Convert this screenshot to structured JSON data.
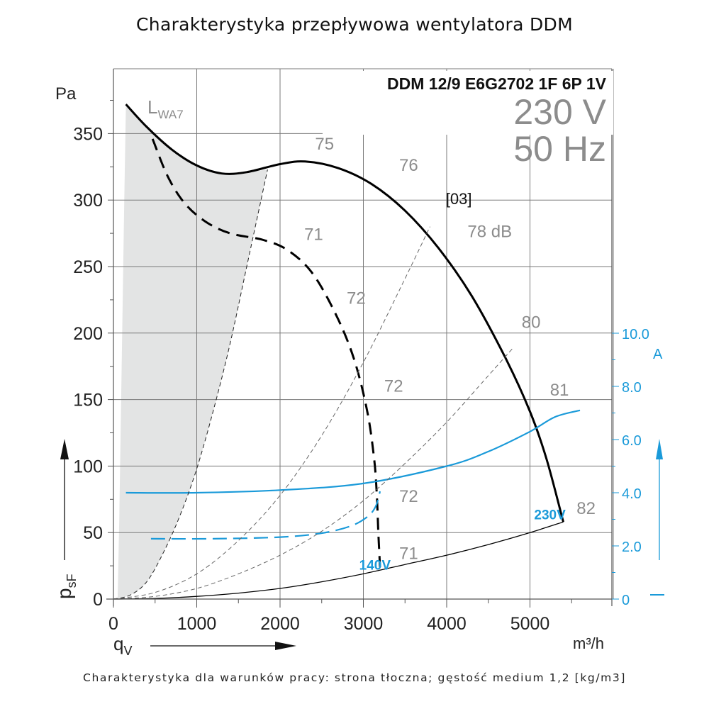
{
  "header": {
    "title": "Charakterystyka przepływowa wentylatora DDM"
  },
  "footer": {
    "caption": "Charakterystyka dla warunków pracy: strona tłoczna; gęstość medium 1,2 [kg/m3]"
  },
  "colors": {
    "curve": "#000000",
    "current": "#1a9ad9",
    "label_gray": "#8c8c8c",
    "shade": "#e3e4e4",
    "grid": "#7a7a7a"
  },
  "chart_data": {
    "type": "line",
    "model": "DDM 12/9 E6G2702 1F 6P 1V",
    "voltage_label": "230 V",
    "frequency_label": "50 Hz",
    "curve_code": "[03]",
    "sound_label": "LWA7",
    "sound_label_main": "L",
    "sound_label_sub": "WA7",
    "xlabel": "qV",
    "xlabel_main": "q",
    "xlabel_sub": "V",
    "xunit": "m³/h",
    "ylabel": "psF",
    "ylabel_main": "p",
    "ylabel_sub": "sF",
    "yunit": "Pa",
    "y2unit": "A",
    "xlim": [
      0,
      6000
    ],
    "ylim": [
      0,
      400
    ],
    "y2lim": [
      0,
      10
    ],
    "x_ticks": [
      0,
      1000,
      2000,
      3000,
      4000,
      5000
    ],
    "x_tick_labels": [
      "0",
      "1000",
      "2000",
      "3000",
      "4000",
      "5000"
    ],
    "y_ticks": [
      0,
      50,
      100,
      150,
      200,
      250,
      300,
      350
    ],
    "y_tick_labels": [
      "0",
      "50",
      "100",
      "150",
      "200",
      "250",
      "300",
      "350"
    ],
    "y2_ticks": [
      0,
      2,
      4,
      6,
      8,
      10
    ],
    "y2_tick_labels": [
      "0",
      "2.0",
      "4.0",
      "6.0",
      "8.0",
      "10.0"
    ],
    "grid": true,
    "series": [
      {
        "name": "230V pressure",
        "kind": "pressure",
        "style": "solid",
        "axis": "left",
        "x": [
          150,
          400,
          700,
          1000,
          1300,
          1600,
          2000,
          2300,
          2700,
          3100,
          3500,
          3900,
          4300,
          4700,
          5000,
          5200,
          5400
        ],
        "y": [
          372,
          355,
          338,
          326,
          320,
          321,
          327,
          329,
          324,
          312,
          292,
          264,
          228,
          182,
          141,
          105,
          58
        ]
      },
      {
        "name": "140V pressure",
        "kind": "pressure",
        "style": "dashed",
        "axis": "left",
        "x": [
          470,
          650,
          850,
          1100,
          1400,
          1800,
          2100,
          2400,
          2700,
          2900,
          3050,
          3130,
          3160,
          3180,
          3200
        ],
        "y": [
          346,
          318,
          298,
          284,
          275,
          270,
          262,
          244,
          210,
          178,
          140,
          105,
          80,
          50,
          24
        ]
      },
      {
        "name": "230V current",
        "kind": "current",
        "style": "solid",
        "axis": "right",
        "x": [
          150,
          1000,
          2000,
          3000,
          4000,
          4500,
          5000,
          5300,
          5600
        ],
        "y": [
          4.0,
          4.0,
          4.1,
          4.35,
          5.0,
          5.55,
          6.3,
          6.85,
          7.1
        ]
      },
      {
        "name": "140V current",
        "kind": "current",
        "style": "dashed",
        "axis": "right",
        "x": [
          450,
          1200,
          2000,
          2500,
          2850,
          3050,
          3150,
          3200
        ],
        "y": [
          2.27,
          2.27,
          2.33,
          2.48,
          2.75,
          3.1,
          3.5,
          4.05
        ]
      },
      {
        "name": "Shaded boundary",
        "kind": "boundary",
        "style": "thin-dashed",
        "axis": "left",
        "x": [
          0,
          200,
          400,
          600,
          800,
          1000,
          1200,
          1400,
          1600,
          1850
        ],
        "y": [
          0,
          3,
          13,
          35,
          63,
          98,
          142,
          192,
          250,
          323
        ]
      },
      {
        "name": "System line A",
        "kind": "system",
        "style": "thin-dashed",
        "axis": "left",
        "x": [
          0,
          500,
          1000,
          1500,
          2000,
          2500,
          3000,
          3500,
          3800
        ],
        "y": [
          0,
          5,
          19,
          44,
          78,
          123,
          178,
          241,
          280
        ]
      },
      {
        "name": "System line B",
        "kind": "system",
        "style": "thin-dashed",
        "axis": "left",
        "x": [
          0,
          500,
          1000,
          1500,
          2000,
          2500,
          3000,
          3500,
          4000,
          4500,
          4800
        ],
        "y": [
          0,
          2,
          8,
          19,
          33,
          51,
          74,
          102,
          133,
          168,
          189
        ]
      },
      {
        "name": "System line C",
        "kind": "system",
        "style": "thin-solid",
        "axis": "left",
        "x": [
          0,
          500,
          1000,
          1500,
          2000,
          2500,
          3000,
          3500,
          4000,
          4500,
          5000,
          5400
        ],
        "y": [
          0,
          0.5,
          2,
          4.5,
          8,
          13,
          19,
          26,
          33,
          41,
          50,
          58
        ]
      }
    ],
    "shaded_region": {
      "left_edge_x": [
        150,
        130,
        110,
        90,
        70,
        50
      ],
      "left_edge_y": [
        372,
        300,
        220,
        140,
        60,
        0
      ]
    },
    "annotations": [
      {
        "text": "75",
        "x": 2420,
        "y": 338,
        "color": "gray"
      },
      {
        "text": "76",
        "x": 3430,
        "y": 322,
        "color": "gray"
      },
      {
        "text": "78 dB",
        "x": 4250,
        "y": 272,
        "color": "gray"
      },
      {
        "text": "80",
        "x": 4900,
        "y": 204,
        "color": "gray"
      },
      {
        "text": "81",
        "x": 5240,
        "y": 153,
        "color": "gray"
      },
      {
        "text": "82",
        "x": 5560,
        "y": 64,
        "color": "gray"
      },
      {
        "text": "71",
        "x": 2290,
        "y": 270,
        "color": "gray"
      },
      {
        "text": "72",
        "x": 2800,
        "y": 222,
        "color": "gray"
      },
      {
        "text": "72",
        "x": 3250,
        "y": 156,
        "color": "gray"
      },
      {
        "text": "72",
        "x": 3430,
        "y": 73,
        "color": "gray"
      },
      {
        "text": "71",
        "x": 3430,
        "y": 30,
        "color": "gray"
      },
      {
        "text": "[03]",
        "x": 3990,
        "y": 297,
        "color": "black"
      },
      {
        "text": "230V",
        "x": 5050,
        "y": 60,
        "color": "blue"
      },
      {
        "text": "140V",
        "x": 2950,
        "y": 22,
        "color": "blue"
      }
    ]
  }
}
